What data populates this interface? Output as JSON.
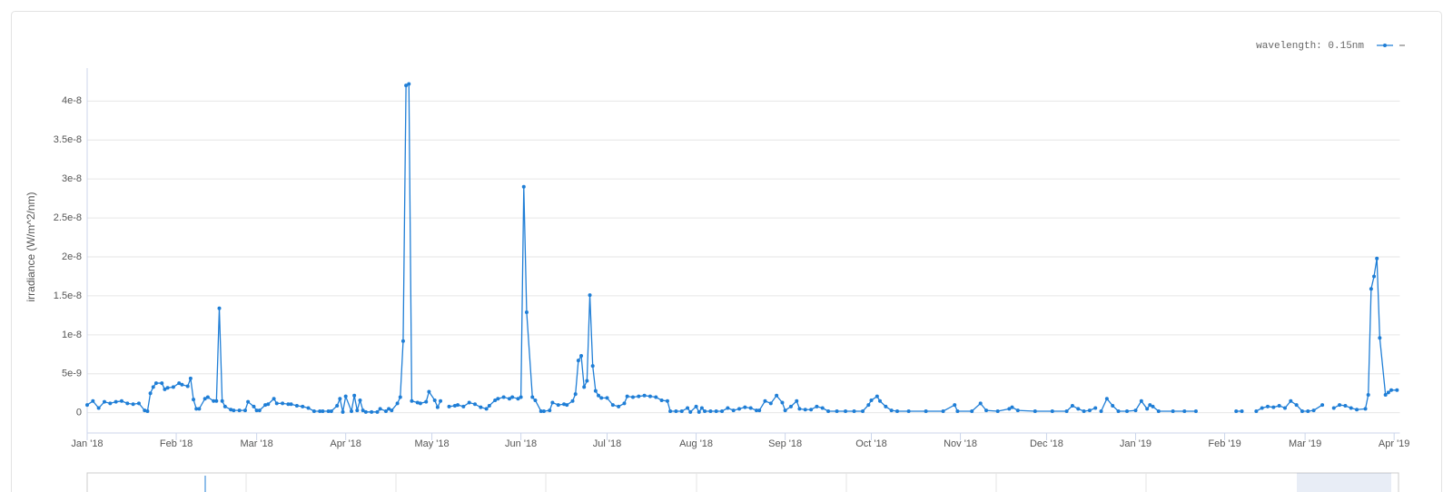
{
  "chart_data": {
    "type": "line",
    "y_label": "irradiance (W/m^2/nm)",
    "xlim": [
      0,
      457
    ],
    "xticks": [
      {
        "value": 0,
        "label": "Jan '18"
      },
      {
        "value": 31,
        "label": "Feb '18"
      },
      {
        "value": 59,
        "label": "Mar '18"
      },
      {
        "value": 90,
        "label": "Apr '18"
      },
      {
        "value": 120,
        "label": "May '18"
      },
      {
        "value": 151,
        "label": "Jun '18"
      },
      {
        "value": 181,
        "label": "Jul '18"
      },
      {
        "value": 212,
        "label": "Aug '18"
      },
      {
        "value": 243,
        "label": "Sep '18"
      },
      {
        "value": 273,
        "label": "Oct '18"
      },
      {
        "value": 304,
        "label": "Nov '18"
      },
      {
        "value": 334,
        "label": "Dec '18"
      },
      {
        "value": 365,
        "label": "Jan '19"
      },
      {
        "value": 396,
        "label": "Feb '19"
      },
      {
        "value": 424,
        "label": "Mar '19"
      },
      {
        "value": 455,
        "label": "Apr '19"
      }
    ],
    "ylim": [
      -2.6e-09,
      4.4e-08
    ],
    "yticks": [
      0,
      5e-09,
      1e-08,
      1.5e-08,
      2e-08,
      2.5e-08,
      3e-08,
      3.5e-08,
      4e-08
    ],
    "grid": true,
    "legend": "top-right",
    "x": [
      0,
      2,
      4,
      6,
      8,
      10,
      12,
      14,
      16,
      18,
      20,
      21,
      22,
      23,
      24,
      26,
      27,
      28,
      30,
      32,
      33,
      35,
      36,
      37,
      38,
      39,
      41,
      42,
      44,
      45,
      46,
      47,
      48,
      50,
      51,
      53,
      55,
      56,
      58,
      59,
      60,
      62,
      63,
      65,
      66,
      68,
      70,
      71,
      73,
      75,
      77,
      79,
      81,
      82,
      84,
      85,
      87,
      88,
      89,
      90,
      92,
      93,
      94,
      95,
      96,
      97,
      99,
      101,
      102,
      104,
      105,
      106,
      108,
      109,
      110,
      111,
      112,
      113,
      115,
      116,
      118,
      119,
      121,
      122,
      123,
      125,
      126,
      128,
      129,
      131,
      133,
      135,
      137,
      139,
      140,
      142,
      143,
      145,
      147,
      148,
      150,
      151,
      152,
      153,
      155,
      156,
      158,
      159,
      161,
      162,
      164,
      166,
      167,
      169,
      170,
      171,
      172,
      173,
      174,
      175,
      176,
      177,
      178,
      179,
      181,
      183,
      185,
      187,
      188,
      190,
      192,
      194,
      196,
      198,
      200,
      202,
      203,
      205,
      207,
      209,
      210,
      212,
      213,
      214,
      215,
      217,
      219,
      221,
      223,
      225,
      227,
      229,
      231,
      233,
      234,
      236,
      238,
      240,
      242,
      243,
      245,
      247,
      248,
      250,
      252,
      254,
      256,
      258,
      261,
      264,
      267,
      270,
      272,
      273,
      275,
      276,
      278,
      280,
      282,
      286,
      292,
      298,
      302,
      303,
      308,
      311,
      313,
      317,
      321,
      322,
      324,
      330,
      336,
      341,
      343,
      345,
      347,
      349,
      351,
      352,
      353,
      355,
      357,
      359,
      362,
      365,
      367,
      369,
      370,
      371,
      373,
      378,
      382,
      386,
      393,
      400,
      402,
      404,
      407,
      409,
      411,
      413,
      415,
      417,
      419,
      421,
      423,
      425,
      427,
      430,
      432,
      434,
      436,
      438,
      440,
      442,
      445,
      446,
      447,
      448,
      449,
      450,
      452,
      453,
      454,
      456
    ],
    "series": [
      {
        "name": "wavelength: 0.15nm",
        "color": "#1f7ed6",
        "values": [
          1e-09,
          1.5e-09,
          6e-10,
          1.4e-09,
          1.2e-09,
          1.4e-09,
          1.5e-09,
          1.2e-09,
          1.1e-09,
          1.2e-09,
          3e-10,
          2e-10,
          2.5e-09,
          3.3e-09,
          3.8e-09,
          3.8e-09,
          3e-09,
          3.2e-09,
          3.3e-09,
          3.8e-09,
          3.6e-09,
          3.4e-09,
          4.4e-09,
          1.7e-09,
          5e-10,
          5e-10,
          1.8e-09,
          2e-09,
          1.5e-09,
          1.5e-09,
          1.34e-08,
          1.5e-09,
          8e-10,
          4e-10,
          3e-10,
          3e-10,
          3e-10,
          1.4e-09,
          8e-10,
          3e-10,
          3e-10,
          1e-09,
          1.1e-09,
          1.8e-09,
          1.2e-09,
          1.2e-09,
          1.1e-09,
          1.1e-09,
          9e-10,
          8e-10,
          6e-10,
          2e-10,
          2e-10,
          2e-10,
          2e-10,
          2e-10,
          9e-10,
          1.8e-09,
          1e-10,
          2.1e-09,
          2e-10,
          2.2e-09,
          3e-10,
          1.6e-09,
          3e-10,
          1e-10,
          1e-10,
          1e-10,
          5e-10,
          2e-10,
          5e-10,
          3e-10,
          1.2e-09,
          2e-09,
          9.2e-09,
          4.2e-08,
          4.22e-08,
          1.5e-09,
          1.3e-09,
          1.2e-09,
          1.4e-09,
          2.7e-09,
          1.6e-09,
          7e-10,
          1.5e-09,
          null,
          8e-10,
          9e-10,
          1e-09,
          8e-10,
          1.3e-09,
          1.1e-09,
          7e-10,
          5e-10,
          9e-10,
          1.6e-09,
          1.8e-09,
          2e-09,
          1.8e-09,
          2e-09,
          1.8e-09,
          2e-09,
          2.9e-08,
          1.29e-08,
          2e-09,
          1.6e-09,
          2e-10,
          2e-10,
          3e-10,
          1.3e-09,
          1e-09,
          1.1e-09,
          1e-09,
          1.5e-09,
          2.4e-09,
          6.7e-09,
          7.3e-09,
          3.3e-09,
          4.1e-09,
          1.51e-08,
          6e-09,
          2.8e-09,
          2.2e-09,
          1.9e-09,
          1.9e-09,
          1e-09,
          8e-10,
          1.2e-09,
          2.1e-09,
          2e-09,
          2.1e-09,
          2.2e-09,
          2.1e-09,
          2e-09,
          1.6e-09,
          1.5e-09,
          2e-10,
          2e-10,
          2e-10,
          6e-10,
          1e-10,
          8e-10,
          1e-10,
          6e-10,
          2e-10,
          2e-10,
          2e-10,
          2e-10,
          6e-10,
          3e-10,
          5e-10,
          7e-10,
          6e-10,
          3e-10,
          3e-10,
          1.5e-09,
          1.2e-09,
          2.2e-09,
          1.3e-09,
          3e-10,
          8e-10,
          1.5e-09,
          5e-10,
          4e-10,
          4e-10,
          8e-10,
          6e-10,
          2e-10,
          2e-10,
          2e-10,
          2e-10,
          2e-10,
          1e-09,
          1.6e-09,
          2.1e-09,
          1.5e-09,
          8e-10,
          3e-10,
          2e-10,
          2e-10,
          2e-10,
          2e-10,
          1e-09,
          2e-10,
          2e-10,
          1.2e-09,
          3e-10,
          2e-10,
          5e-10,
          7e-10,
          3e-10,
          2e-10,
          2e-10,
          2e-10,
          9e-10,
          5e-10,
          2e-10,
          3e-10,
          6e-10,
          null,
          2e-10,
          1.8e-09,
          9e-10,
          2e-10,
          2e-10,
          3e-10,
          1.5e-09,
          5e-10,
          1e-09,
          8e-10,
          2e-10,
          2e-10,
          2e-10,
          2e-10,
          null,
          2e-10,
          2e-10,
          null,
          2e-10,
          6e-10,
          8e-10,
          7e-10,
          9e-10,
          6e-10,
          1.5e-09,
          1e-09,
          2e-10,
          2e-10,
          3e-10,
          1e-09,
          null,
          6e-10,
          1e-09,
          9e-10,
          6e-10,
          4e-10,
          5e-10,
          2.3e-09,
          1.59e-08,
          1.75e-08,
          1.98e-08,
          9.6e-09,
          2.3e-09,
          2.6e-09,
          2.9e-09,
          2.9e-09
        ]
      }
    ]
  }
}
